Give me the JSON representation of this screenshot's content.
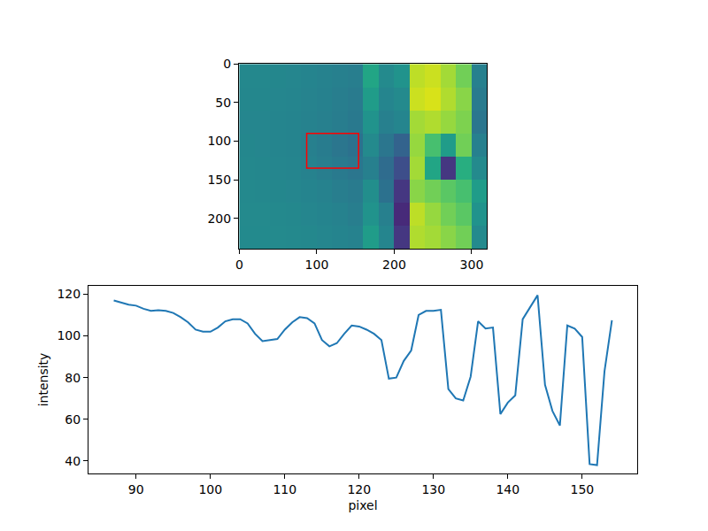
{
  "chart_data": [
    {
      "type": "heatmap",
      "color": "viridis",
      "zlim": [
        0,
        255
      ],
      "x": [
        10,
        30,
        50,
        70,
        90,
        110,
        130,
        150,
        170,
        190,
        210,
        230,
        250,
        270,
        290,
        310
      ],
      "y": [
        15,
        45,
        75,
        105,
        135,
        165,
        195,
        225
      ],
      "cells": [
        [
          118,
          118,
          117,
          116,
          114,
          112,
          110,
          108,
          150,
          120,
          130,
          230,
          235,
          220,
          200,
          110
        ],
        [
          117,
          117,
          116,
          115,
          113,
          111,
          108,
          105,
          140,
          115,
          120,
          235,
          240,
          225,
          210,
          105
        ],
        [
          116,
          116,
          115,
          114,
          112,
          110,
          107,
          103,
          130,
          110,
          115,
          220,
          225,
          215,
          205,
          100
        ],
        [
          117,
          116,
          115,
          114,
          110,
          106,
          100,
          95,
          120,
          100,
          80,
          215,
          180,
          140,
          200,
          110
        ],
        [
          118,
          117,
          116,
          115,
          112,
          108,
          104,
          100,
          110,
          90,
          60,
          220,
          150,
          40,
          160,
          120
        ],
        [
          119,
          118,
          117,
          116,
          114,
          112,
          108,
          105,
          125,
          95,
          40,
          210,
          200,
          190,
          180,
          140
        ],
        [
          120,
          120,
          119,
          118,
          116,
          114,
          112,
          108,
          130,
          110,
          30,
          230,
          215,
          200,
          190,
          130
        ],
        [
          121,
          121,
          120,
          119,
          118,
          116,
          114,
          112,
          140,
          115,
          40,
          225,
          220,
          210,
          200,
          120
        ]
      ],
      "xlim": [
        -0.5,
        319.5
      ],
      "ylim": [
        239.5,
        -0.5
      ],
      "xticks": [
        0,
        100,
        200,
        300
      ],
      "yticks": [
        0,
        50,
        100,
        150,
        200
      ],
      "rectangle": {
        "x": [
          87,
          154
        ],
        "y": [
          90,
          135
        ],
        "color": "red"
      },
      "grid": false
    },
    {
      "type": "line",
      "x_label": "pixel",
      "y_label": "intensity",
      "color": "#1f77b4",
      "x": [
        87,
        88,
        89,
        90,
        91,
        92,
        93,
        94,
        95,
        96,
        97,
        98,
        99,
        100,
        101,
        102,
        103,
        104,
        105,
        106,
        107,
        108,
        109,
        110,
        111,
        112,
        113,
        114,
        115,
        116,
        117,
        118,
        119,
        120,
        121,
        122,
        123,
        124,
        125,
        126,
        127,
        128,
        129,
        130,
        131,
        132,
        133,
        134,
        135,
        136,
        137,
        138,
        139,
        140,
        141,
        142,
        143,
        144,
        145,
        146,
        147,
        148,
        149,
        150,
        151,
        152,
        153,
        154
      ],
      "values": [
        117,
        116,
        115,
        114.5,
        113,
        112,
        112.3,
        112,
        111,
        109,
        106.5,
        103,
        102,
        102,
        104,
        107,
        108,
        108,
        106,
        101,
        97.5,
        98,
        98.5,
        103,
        106.5,
        109,
        108.5,
        106,
        98,
        95,
        96.5,
        101,
        105,
        104.5,
        103,
        101,
        98,
        79.5,
        80,
        88,
        93,
        110,
        112,
        112,
        112.5,
        74.5,
        70,
        69,
        80.5,
        107,
        103.5,
        104,
        62.5,
        68,
        71.5,
        108,
        114,
        119.5,
        76.5,
        64,
        57,
        105,
        103.5,
        99.5,
        38.5,
        38,
        83,
        107.5
      ],
      "xlim": [
        83.6,
        157.4
      ],
      "ylim": [
        34,
        124
      ],
      "xticks": [
        90,
        100,
        110,
        120,
        130,
        140,
        150
      ],
      "yticks": [
        40,
        60,
        80,
        100,
        120
      ],
      "grid": false
    }
  ]
}
